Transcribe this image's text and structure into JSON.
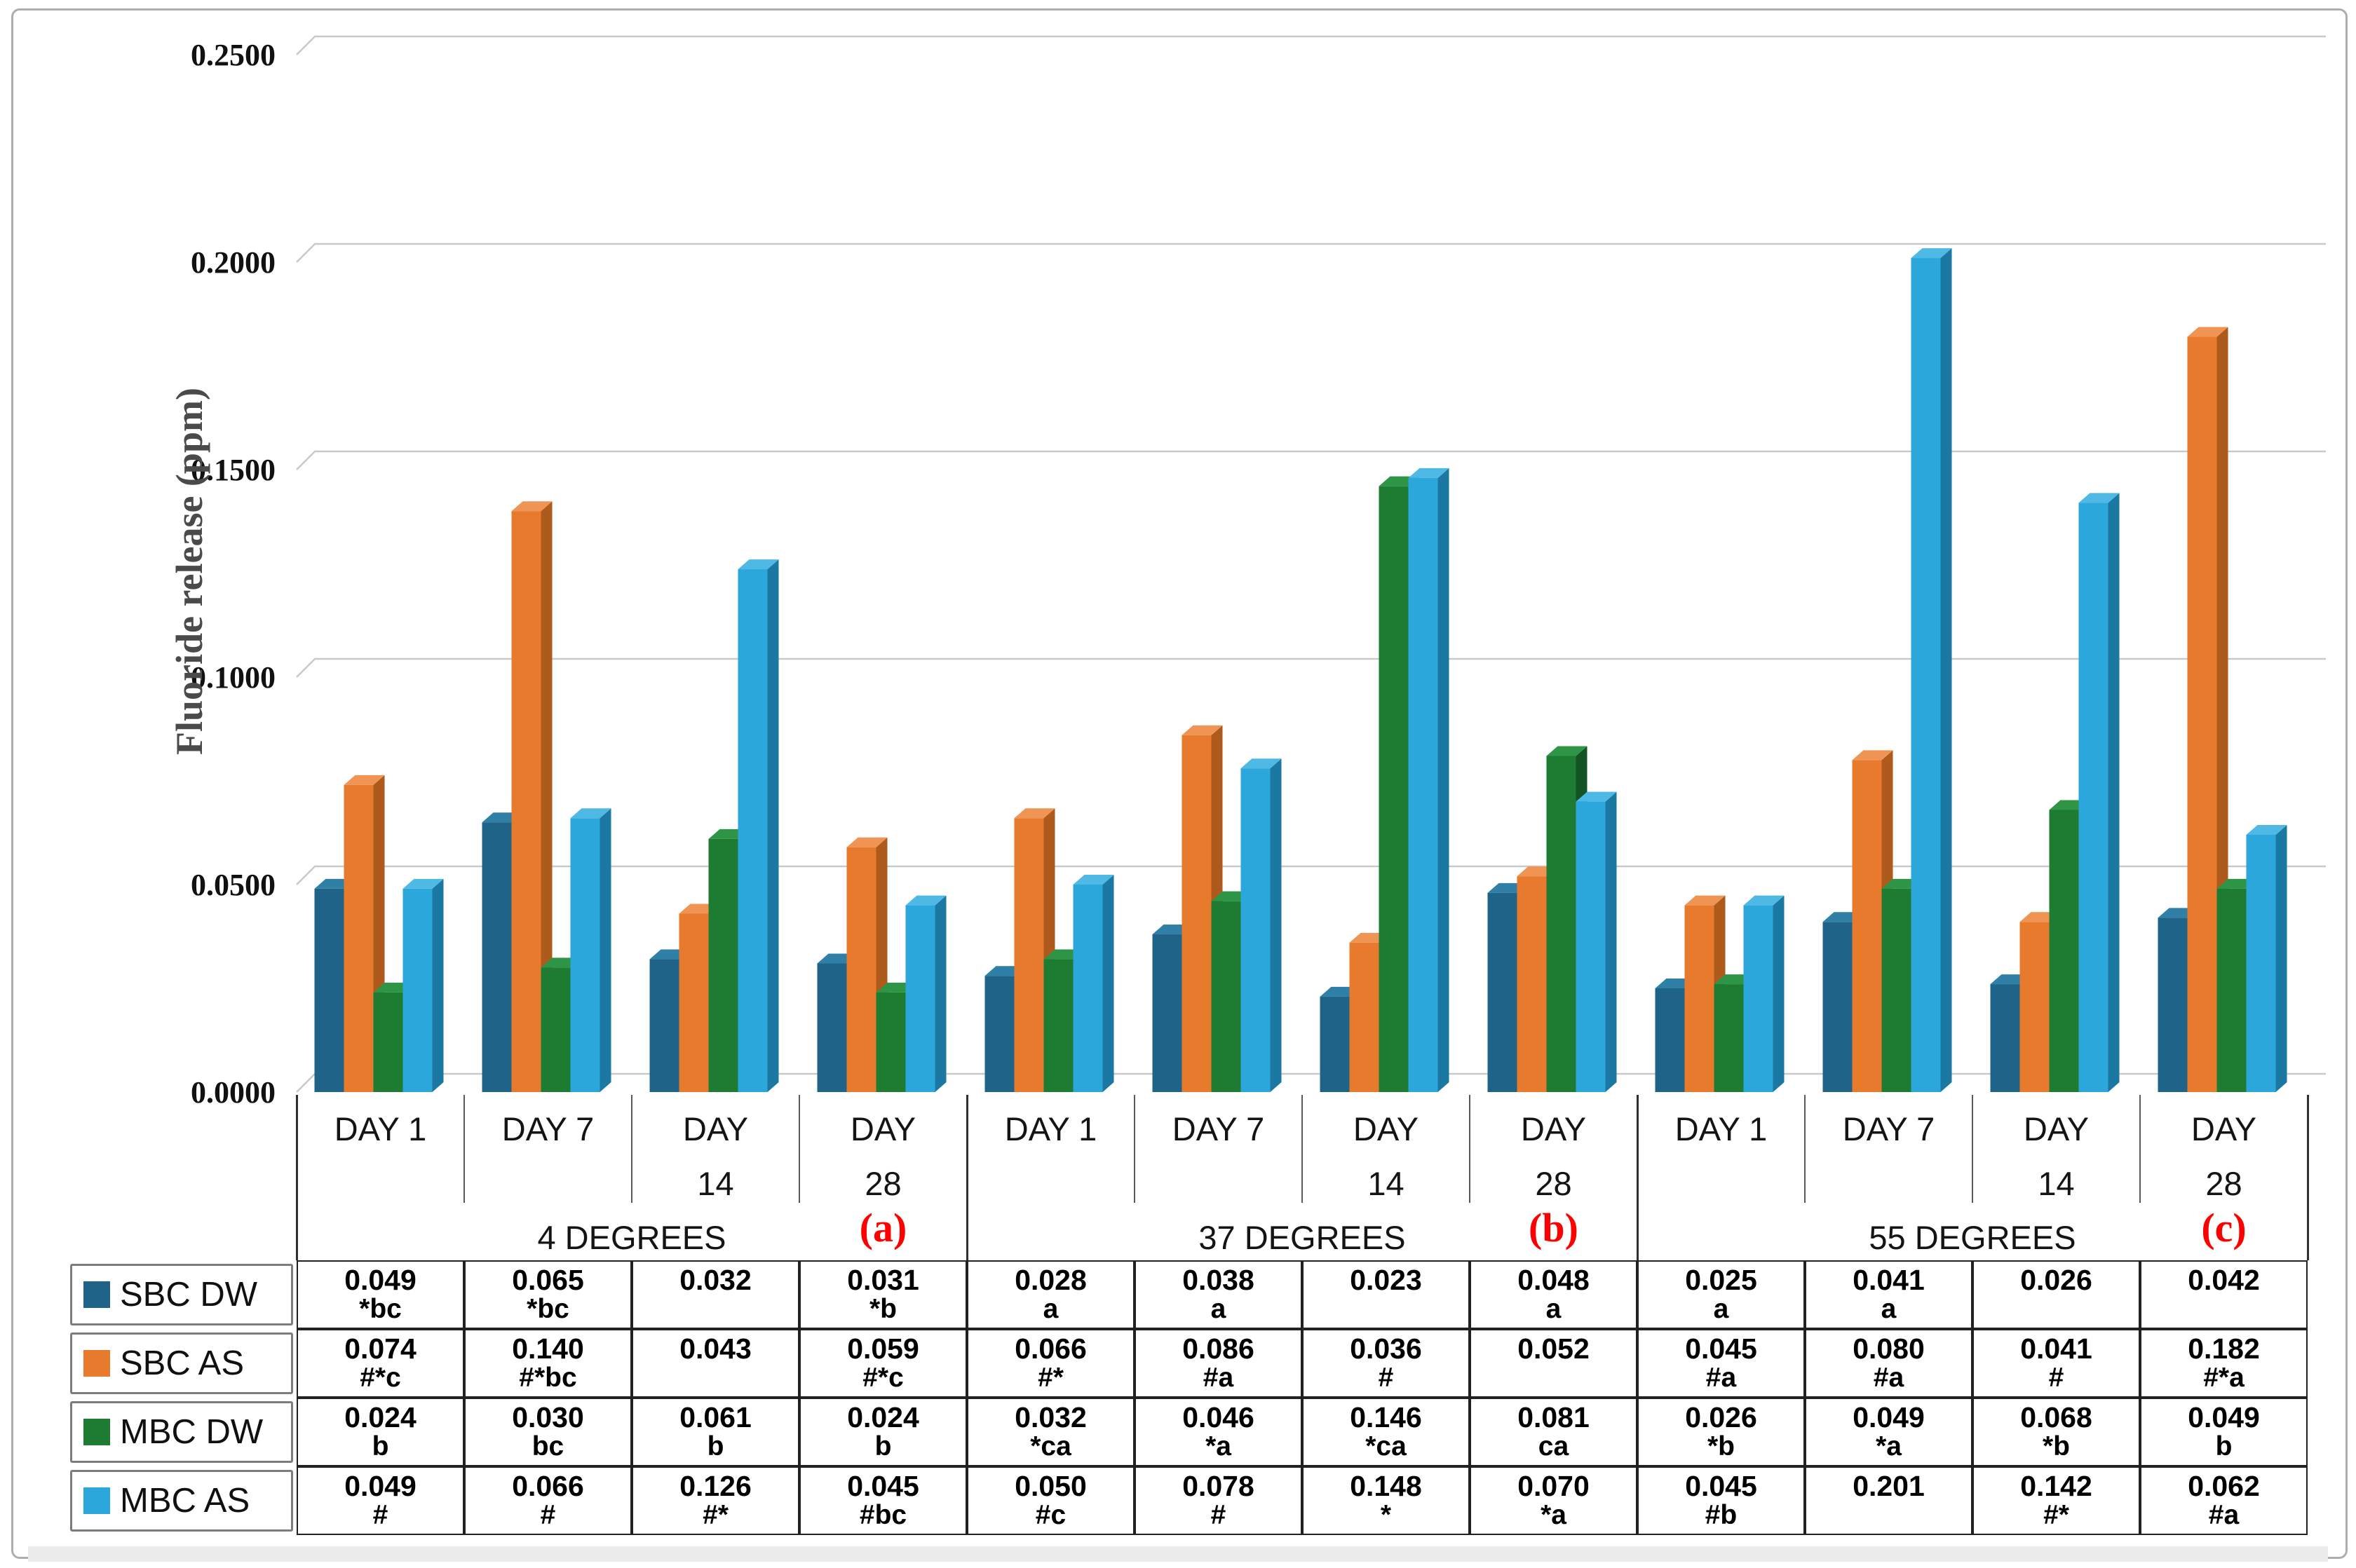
{
  "figure": {
    "kind": "3d-clustered-column-chart-with-data-table",
    "background": "#ffffff",
    "panel_letter_color": "#ff0000"
  },
  "chart_data": {
    "type": "bar",
    "title": "",
    "xlabel": "",
    "ylabel": "Fluoride release (ppm)",
    "ylim": [
      0,
      0.25
    ],
    "grid": true,
    "legend_position": "table-left",
    "y_tick_labels": [
      "0.0000",
      "0.0500",
      "0.1000",
      "0.1500",
      "0.2000",
      "0.2500"
    ],
    "y_tick_values": [
      0,
      0.05,
      0.1,
      0.15,
      0.2,
      0.25
    ],
    "groups": [
      {
        "label": "4 DEGREES",
        "panel": "(a)"
      },
      {
        "label": "37 DEGREES",
        "panel": "(b)"
      },
      {
        "label": "55 DEGREES",
        "panel": "(c)"
      }
    ],
    "day_labels_lines": [
      [
        "DAY 1"
      ],
      [
        "DAY 7"
      ],
      [
        "DAY",
        "14"
      ],
      [
        "DAY",
        "28"
      ]
    ],
    "categories": [
      "DAY 1",
      "DAY 7",
      "DAY 14",
      "DAY 28",
      "DAY 1",
      "DAY 7",
      "DAY 14",
      "DAY 28",
      "DAY 1",
      "DAY 7",
      "DAY 14",
      "DAY 28"
    ],
    "series": [
      {
        "name": "SBC DW",
        "color": "#1f6488",
        "color_top": "#2f7fa6",
        "color_side": "#15465f",
        "values": [
          0.049,
          0.065,
          0.032,
          0.031,
          0.028,
          0.038,
          0.023,
          0.048,
          0.025,
          0.041,
          0.026,
          0.042
        ],
        "notes": [
          "*bc",
          "*bc",
          "",
          "*b",
          "a",
          "a",
          "",
          "a",
          "a",
          "a",
          "",
          ""
        ]
      },
      {
        "name": "SBC AS",
        "color": "#e87a2e",
        "color_top": "#f09453",
        "color_side": "#ae5a1c",
        "values": [
          0.074,
          0.14,
          0.043,
          0.059,
          0.066,
          0.086,
          0.036,
          0.052,
          0.045,
          0.08,
          0.041,
          0.182
        ],
        "notes": [
          "#*c",
          "#*bc",
          "",
          "#*c",
          "#*",
          "#a",
          "#",
          "",
          "#a",
          "#a",
          "#",
          "#*a"
        ]
      },
      {
        "name": "MBC DW",
        "color": "#1e7c32",
        "color_top": "#2d9545",
        "color_side": "#145424",
        "values": [
          0.024,
          0.03,
          0.061,
          0.024,
          0.032,
          0.046,
          0.146,
          0.081,
          0.026,
          0.049,
          0.068,
          0.049
        ],
        "notes": [
          "b",
          "bc",
          "b",
          "b",
          "*ca",
          "*a",
          "*ca",
          "ca",
          "*b",
          "*a",
          "*b",
          "b"
        ]
      },
      {
        "name": "MBC AS",
        "color": "#2ba7db",
        "color_top": "#4fb9e5",
        "color_side": "#1b78a2",
        "values": [
          0.049,
          0.066,
          0.126,
          0.045,
          0.05,
          0.078,
          0.148,
          0.07,
          0.045,
          0.201,
          0.142,
          0.062
        ],
        "notes": [
          "#",
          "#",
          "#*",
          "#bc",
          "#c",
          "#",
          "*",
          "*a",
          "#b",
          "",
          "#*",
          "#a"
        ]
      }
    ]
  },
  "table": {
    "legend": [
      {
        "label": "SBC DW",
        "color": "#1f6488"
      },
      {
        "label": "SBC AS",
        "color": "#e87a2e"
      },
      {
        "label": "MBC DW",
        "color": "#1e7c32"
      },
      {
        "label": "MBC AS",
        "color": "#2ba7db"
      }
    ],
    "value_decimals": 3
  }
}
